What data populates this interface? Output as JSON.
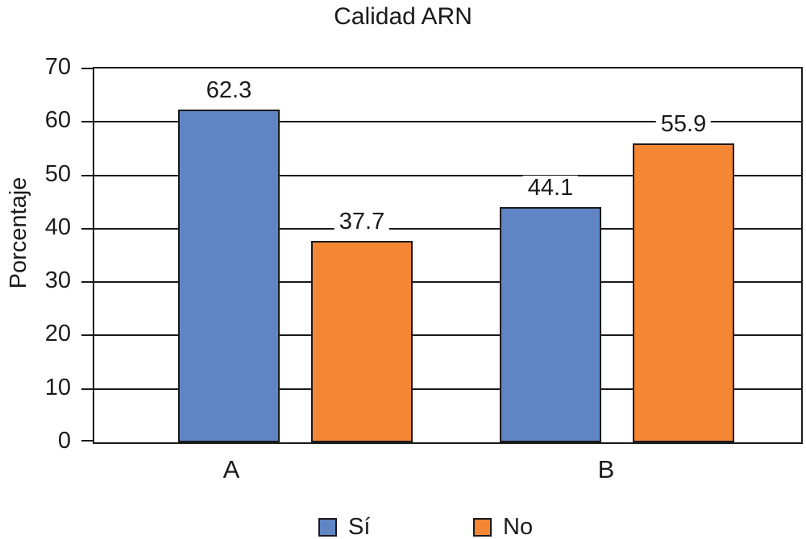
{
  "title": "Calidad ARN",
  "chart_data": {
    "type": "bar",
    "title": "Calidad ARN",
    "xlabel": "",
    "ylabel": "Porcentaje",
    "categories": [
      "A",
      "B"
    ],
    "series": [
      {
        "name": "Sí",
        "color": "#5F85C5",
        "values": [
          62.3,
          44.1
        ]
      },
      {
        "name": "No",
        "color": "#F58634",
        "values": [
          37.7,
          55.9
        ]
      }
    ],
    "data_labels": [
      [
        "62.3",
        "44.1"
      ],
      [
        "37.7",
        "55.9"
      ]
    ],
    "ylim": [
      0,
      70
    ],
    "ytick_step": 10,
    "ytick_labels": [
      "0",
      "10",
      "20",
      "30",
      "40",
      "50",
      "60",
      "70"
    ],
    "grid": true,
    "gridline_color": "#1a1a1a",
    "legend_position": "bottom"
  }
}
